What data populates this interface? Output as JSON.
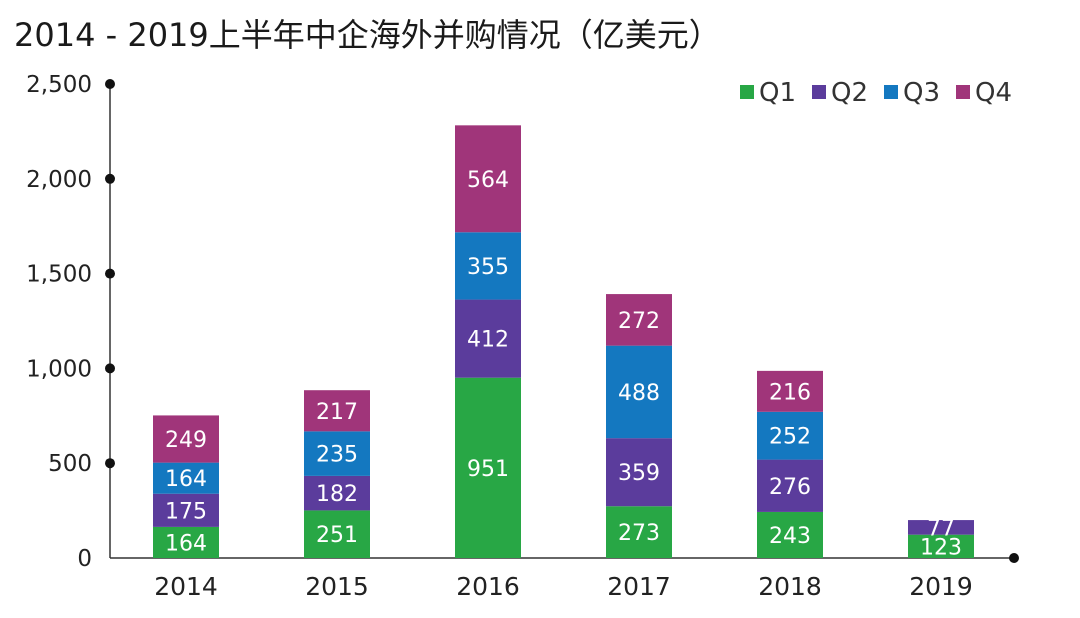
{
  "chart_data": {
    "type": "bar",
    "stacked": true,
    "title": "2014 - 2019上半年中企海外并购情况（亿美元）",
    "categories": [
      "2014",
      "2015",
      "2016",
      "2017",
      "2018",
      "2019"
    ],
    "series": [
      {
        "name": "Q1",
        "color": "#28a745",
        "values": [
          164,
          251,
          951,
          273,
          243,
          123
        ]
      },
      {
        "name": "Q2",
        "color": "#5b3c9c",
        "values": [
          175,
          182,
          412,
          359,
          276,
          77
        ]
      },
      {
        "name": "Q3",
        "color": "#1478c0",
        "values": [
          164,
          235,
          355,
          488,
          252,
          null
        ]
      },
      {
        "name": "Q4",
        "color": "#a0357a",
        "values": [
          249,
          217,
          564,
          272,
          216,
          null
        ]
      }
    ],
    "yticks": [
      "0",
      "500",
      "1,000",
      "1,500",
      "2,000",
      "2,500"
    ],
    "ylim": [
      0,
      2500
    ],
    "grid": false,
    "legend": "top-right"
  }
}
